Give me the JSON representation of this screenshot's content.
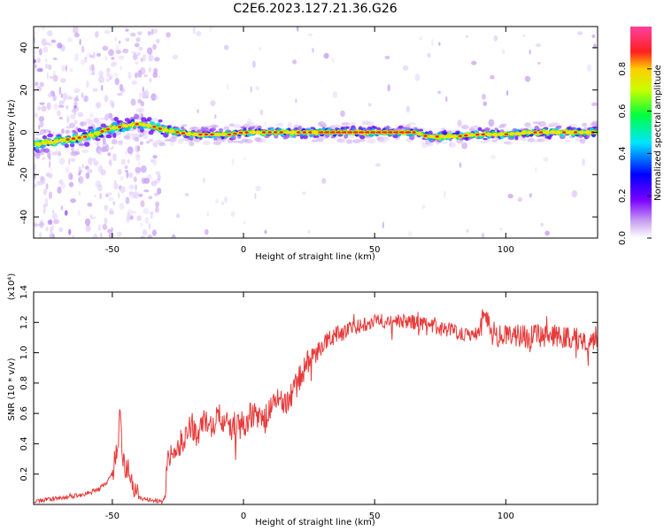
{
  "title": "C2E6.2023.127.21.36.G26",
  "colors": {
    "snr_line": "#e83b3b",
    "ridge": "#e83b3b"
  },
  "chart_data": [
    {
      "type": "heatmap",
      "xlabel": "Height of straight line (km)",
      "ylabel": "Frequency (Hz)",
      "xlim": [
        -80,
        135
      ],
      "ylim": [
        -50,
        50
      ],
      "xticks": [
        -50,
        0,
        50,
        100
      ],
      "xtick_labels": [
        "-50",
        "0",
        "50",
        "100"
      ],
      "yticks": [
        -40,
        -20,
        0,
        20,
        40
      ],
      "ytick_labels": [
        "-40",
        "-20",
        "0",
        "20",
        "40"
      ],
      "colorbar": {
        "label": "Normalized spectral amplitude",
        "range": [
          0,
          1
        ],
        "ticks": [
          0.0,
          0.2,
          0.4,
          0.6,
          0.8
        ],
        "tick_labels": [
          "0.0",
          "0.2",
          "0.4",
          "0.6",
          "0.8"
        ],
        "colormap": "rainbow (white-purple-blue-cyan-green-yellow-red-magenta)"
      },
      "ridge": {
        "x": [
          -80,
          -75,
          -70,
          -65,
          -60,
          -55,
          -50,
          -45,
          -40,
          -35,
          -30,
          -25,
          -20,
          -15,
          -10,
          -5,
          0,
          10,
          20,
          30,
          40,
          50,
          60,
          65,
          68,
          70,
          80,
          90,
          100,
          110,
          120,
          135
        ],
        "y": [
          -6,
          -5,
          -4,
          -3,
          -2,
          0,
          2,
          3,
          4,
          3,
          1,
          0,
          -1,
          -1,
          -1,
          -1,
          0,
          0,
          0,
          0,
          0,
          0,
          0,
          0,
          -1,
          -2,
          -2,
          -1,
          -1,
          0,
          0,
          0
        ]
      }
    },
    {
      "type": "line",
      "xlabel": "Height of straight line (km)",
      "ylabel": "SNR (10 * v/v)",
      "y_multiplier": "(x10⁴)",
      "xlim": [
        -80,
        135
      ],
      "ylim": [
        0,
        1.4
      ],
      "xticks": [
        -50,
        0,
        50,
        100
      ],
      "xtick_labels": [
        "-50",
        "0",
        "50",
        "100"
      ],
      "yticks": [
        0.2,
        0.4,
        0.6,
        0.8,
        1.0,
        1.2,
        1.4
      ],
      "ytick_labels": [
        "0.2",
        "0.4",
        "0.6",
        "0.8",
        "1.0",
        "1.2",
        "1.4"
      ],
      "series": [
        {
          "x": [
            -80,
            -70,
            -60,
            -55,
            -52,
            -50,
            -48,
            -47,
            -46,
            -45,
            -44,
            -42,
            -40,
            -38,
            -35,
            -32,
            -30,
            -29,
            -28,
            -26,
            -24,
            -22,
            -20,
            -18,
            -15,
            -12,
            -10,
            -8,
            -5,
            -2,
            0,
            3,
            5,
            8,
            10,
            12,
            15,
            18,
            20,
            22,
            25,
            28,
            30,
            35,
            40,
            45,
            50,
            55,
            60,
            65,
            70,
            75,
            80,
            85,
            90,
            92,
            95,
            100,
            105,
            110,
            115,
            120,
            125,
            130,
            135
          ],
          "y": [
            0.02,
            0.04,
            0.07,
            0.1,
            0.15,
            0.2,
            0.4,
            0.6,
            0.3,
            0.2,
            0.25,
            0.1,
            0.05,
            0.03,
            0.03,
            0.02,
            0.04,
            0.25,
            0.35,
            0.3,
            0.4,
            0.45,
            0.55,
            0.45,
            0.55,
            0.5,
            0.6,
            0.55,
            0.5,
            0.55,
            0.52,
            0.6,
            0.58,
            0.55,
            0.62,
            0.7,
            0.65,
            0.72,
            0.78,
            0.85,
            0.95,
            1.0,
            1.05,
            1.12,
            1.15,
            1.18,
            1.22,
            1.2,
            1.21,
            1.2,
            1.18,
            1.16,
            1.15,
            1.12,
            1.14,
            1.28,
            1.12,
            1.1,
            1.12,
            1.1,
            1.12,
            1.1,
            1.1,
            1.08,
            1.1
          ]
        }
      ]
    }
  ]
}
